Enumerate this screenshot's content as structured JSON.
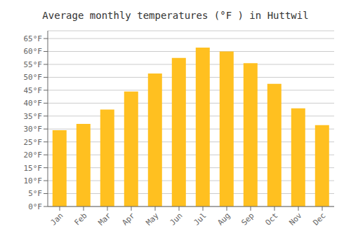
{
  "chart_data": {
    "type": "bar",
    "title": "Average monthly temperatures (°F ) in Huttwil",
    "categories": [
      "Jan",
      "Feb",
      "Mar",
      "Apr",
      "May",
      "Jun",
      "Jul",
      "Aug",
      "Sep",
      "Oct",
      "Nov",
      "Dec"
    ],
    "values": [
      29.5,
      32.0,
      37.5,
      44.5,
      51.5,
      57.5,
      61.5,
      60.0,
      55.5,
      47.5,
      38.0,
      31.5
    ],
    "color": "#FFC020",
    "ylim": [
      0,
      68
    ],
    "yticks": [
      {
        "value": 0,
        "label": "0°F"
      },
      {
        "value": 5,
        "label": "5°F"
      },
      {
        "value": 10,
        "label": "10°F"
      },
      {
        "value": 15,
        "label": "15°F"
      },
      {
        "value": 20,
        "label": "20°F"
      },
      {
        "value": 25,
        "label": "25°F"
      },
      {
        "value": 30,
        "label": "30°F"
      },
      {
        "value": 35,
        "label": "35°F"
      },
      {
        "value": 40,
        "label": "40°F"
      },
      {
        "value": 45,
        "label": "45°F"
      },
      {
        "value": 50,
        "label": "50°F"
      },
      {
        "value": 55,
        "label": "55°F"
      },
      {
        "value": 60,
        "label": "60°F"
      },
      {
        "value": 65,
        "label": "65°F"
      }
    ],
    "grid": true
  }
}
